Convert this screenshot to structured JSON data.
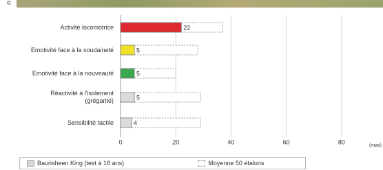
{
  "credit": "©",
  "chart_data": {
    "type": "bar",
    "orientation": "horizontal",
    "categories": [
      "Activité locomotrice",
      "Emotivité face à la soudaineté",
      "Emotivité face à la nouveauté",
      "Réactivité à l'isolement (grégarité)",
      "Sensibilité tactile"
    ],
    "series": [
      {
        "name": "Baurisheen King (test à 18 ans)",
        "color": "#d6d6d6",
        "colors": [
          "#dc2a2e",
          "#f1e12a",
          "#3aa84c",
          "#dcdcdc",
          "#dcdcdc"
        ],
        "values": [
          22,
          5,
          5,
          5,
          4
        ]
      },
      {
        "name": "Moyenne 50 étalons",
        "color": "#ffffff",
        "style": "dashed",
        "values": [
          37,
          28,
          20,
          29,
          29
        ]
      }
    ],
    "xlim": [
      0,
      95
    ],
    "xticks": [
      0,
      20,
      40,
      60,
      80
    ],
    "xlabel": "(max)",
    "grid": true
  }
}
